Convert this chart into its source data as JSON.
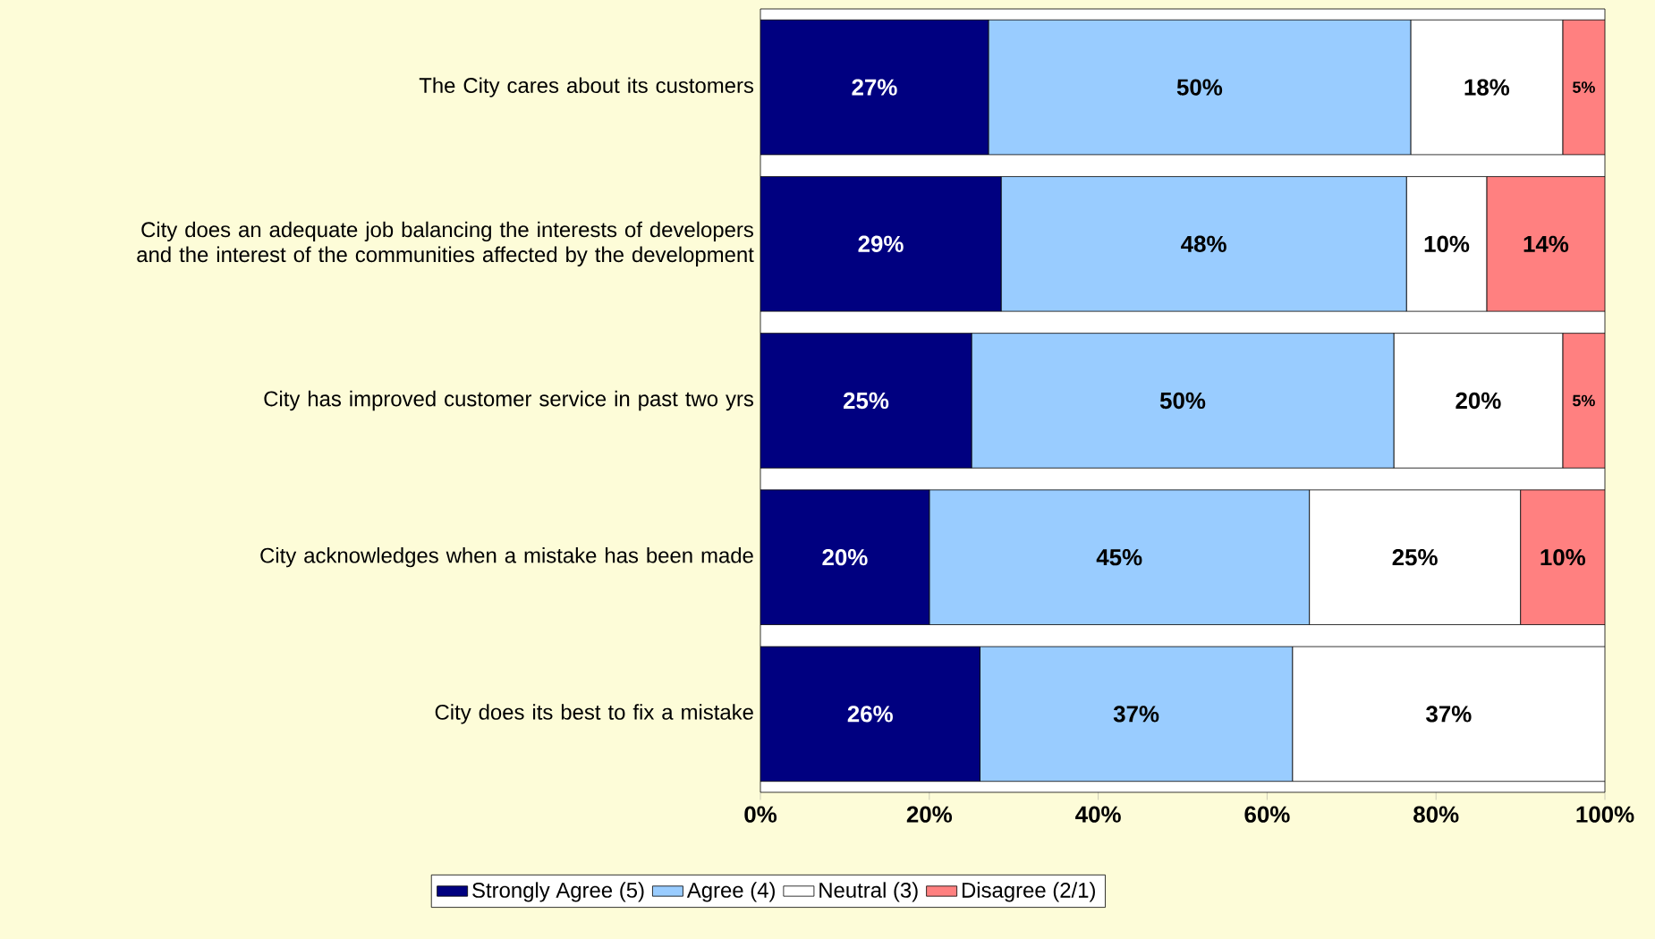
{
  "chart_data": {
    "type": "bar",
    "orientation": "horizontal",
    "stacked": true,
    "legend": "bottom",
    "grid": false,
    "categories": [
      "The City cares about its customers",
      "City does an adequate job balancing the interests of developers and the interest of the communities affected by the development",
      "City has improved customer service in past two yrs",
      "City acknowledges when a mistake has been made",
      "City does its best to fix a mistake"
    ],
    "xlim": [
      0,
      100
    ],
    "xticks": [
      {
        "value": 0,
        "label": "0%"
      },
      {
        "value": 20,
        "label": "20%"
      },
      {
        "value": 40,
        "label": "40%"
      },
      {
        "value": 60,
        "label": "60%"
      },
      {
        "value": 80,
        "label": "80%"
      },
      {
        "value": 100,
        "label": "100%"
      }
    ],
    "series": [
      {
        "name": "Strongly Agree (5)",
        "color": "#000080",
        "values": [
          27,
          28.5,
          25,
          20,
          26
        ],
        "value_labels": [
          "27%",
          "29%",
          "25%",
          "20%",
          "26%"
        ]
      },
      {
        "name": "Agree (4)",
        "color": "#99ccff",
        "values": [
          50,
          48,
          50,
          45,
          37
        ],
        "value_labels": [
          "50%",
          "48%",
          "50%",
          "45%",
          "37%"
        ]
      },
      {
        "name": "Neutral (3)",
        "color": "#ffffff",
        "values": [
          18,
          9.5,
          20,
          25,
          37
        ],
        "value_labels": [
          "18%",
          "10%",
          "20%",
          "25%",
          "37%"
        ]
      },
      {
        "name": "Disagree (2/1)",
        "color": "#ff8080",
        "values": [
          5,
          14,
          5,
          10,
          null
        ],
        "value_labels": [
          "5%",
          "14%",
          "5%",
          "10%",
          null
        ]
      }
    ]
  }
}
